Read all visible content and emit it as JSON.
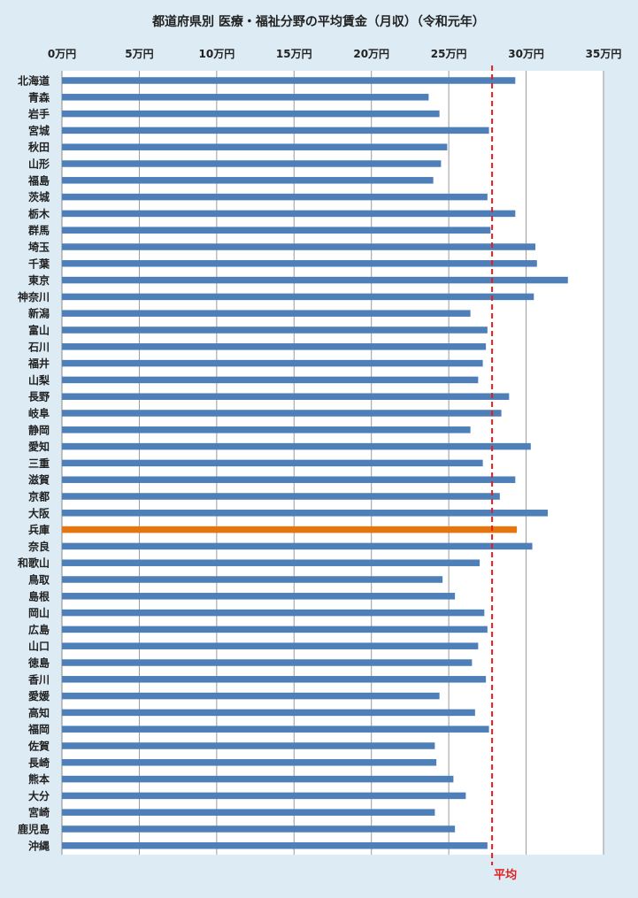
{
  "chart_data": {
    "type": "bar",
    "orientation": "horizontal",
    "title": "都道府県別 医療・福祉分野の平均賃金（月収）（令和元年）",
    "unit": "万円",
    "xlim": [
      0,
      35
    ],
    "tick_values": [
      0,
      5,
      10,
      15,
      20,
      25,
      30,
      35
    ],
    "tick_labels": [
      "0万円",
      "5万円",
      "10万円",
      "15万円",
      "20万円",
      "25万円",
      "30万円",
      "35万円"
    ],
    "grid": true,
    "categories": [
      "北海道",
      "青森",
      "岩手",
      "宮城",
      "秋田",
      "山形",
      "福島",
      "茨城",
      "栃木",
      "群馬",
      "埼玉",
      "千葉",
      "東京",
      "神奈川",
      "新潟",
      "富山",
      "石川",
      "福井",
      "山梨",
      "長野",
      "岐阜",
      "静岡",
      "愛知",
      "三重",
      "滋賀",
      "京都",
      "大阪",
      "兵庫",
      "奈良",
      "和歌山",
      "鳥取",
      "島根",
      "岡山",
      "広島",
      "山口",
      "徳島",
      "香川",
      "愛媛",
      "高知",
      "福岡",
      "佐賀",
      "長崎",
      "熊本",
      "大分",
      "宮崎",
      "鹿児島",
      "沖縄"
    ],
    "values": [
      29.3,
      23.7,
      24.4,
      27.6,
      24.9,
      24.5,
      24.0,
      27.5,
      29.3,
      27.7,
      30.6,
      30.7,
      32.7,
      30.5,
      26.4,
      27.5,
      27.4,
      27.2,
      26.9,
      28.9,
      28.4,
      26.4,
      30.3,
      27.2,
      29.3,
      28.3,
      31.4,
      29.4,
      30.4,
      27.0,
      24.6,
      25.4,
      27.3,
      27.5,
      26.9,
      26.5,
      27.4,
      24.4,
      26.7,
      27.6,
      24.1,
      24.2,
      25.3,
      26.1,
      24.1,
      25.4,
      27.5
    ],
    "highlight": {
      "category": "兵庫",
      "color": "#e8740e"
    },
    "bar_color": "#4f7fb9",
    "average": {
      "value": 27.8,
      "label": "平均",
      "color": "#e02020"
    }
  }
}
